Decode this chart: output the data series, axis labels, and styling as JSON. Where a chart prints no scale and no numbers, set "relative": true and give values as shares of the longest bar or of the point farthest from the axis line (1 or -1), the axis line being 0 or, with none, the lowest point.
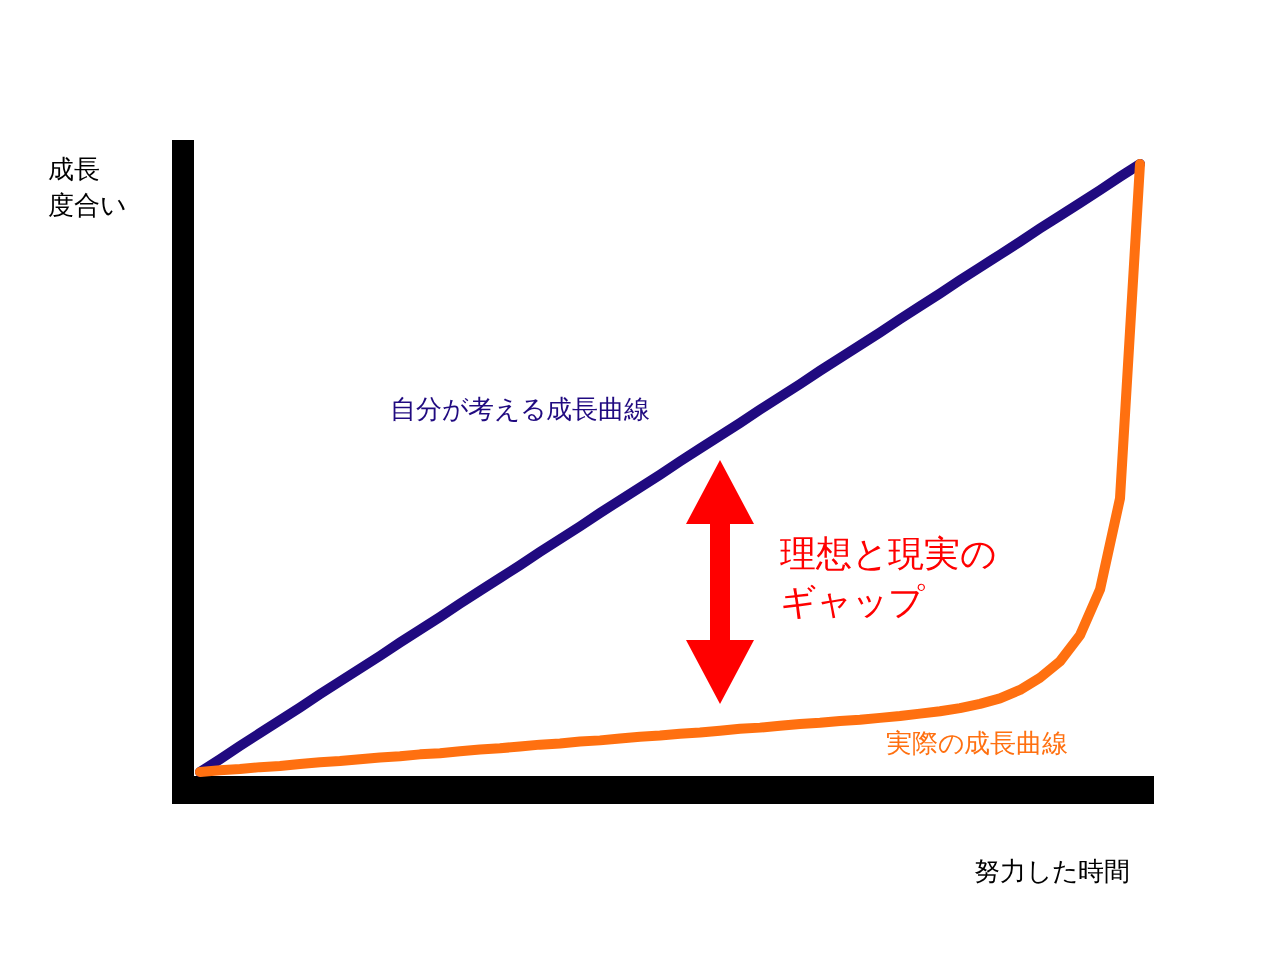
{
  "chart_data": {
    "type": "line",
    "relative": true,
    "xlabel": "努力した時間",
    "ylabel": "成長度合い",
    "annotations": [
      "理想と現実のギャップ"
    ],
    "categories": [
      null,
      null,
      null,
      null,
      null,
      null,
      null,
      null,
      null,
      null,
      null,
      null,
      null,
      null,
      null,
      null,
      null,
      null,
      null,
      null,
      null,
      null,
      null,
      null,
      null,
      null,
      null,
      null,
      null,
      null,
      null,
      null,
      null,
      null,
      null,
      null,
      null,
      null,
      null,
      null,
      null,
      null,
      null,
      null,
      null,
      null,
      null,
      null
    ],
    "series": [
      {
        "name": "自分が考える成長曲線",
        "color": "#200a80",
        "values": [
          0,
          0.021,
          0.043,
          0.064,
          0.085,
          0.106,
          0.128,
          0.149,
          0.17,
          0.191,
          0.213,
          0.234,
          0.255,
          0.277,
          0.298,
          0.319,
          0.34,
          0.362,
          0.383,
          0.404,
          0.426,
          0.447,
          0.468,
          0.489,
          0.511,
          0.532,
          0.553,
          0.574,
          0.596,
          0.617,
          0.638,
          0.66,
          0.681,
          0.702,
          0.723,
          0.745,
          0.766,
          0.787,
          0.809,
          0.83,
          0.851,
          0.872,
          0.894,
          0.915,
          0.936,
          0.957,
          0.979,
          1
        ]
      },
      {
        "name": "実際の成長曲線",
        "color": "#ff7010",
        "values": [
          0,
          0.003,
          0.005,
          0.008,
          0.01,
          0.013,
          0.016,
          0.018,
          0.021,
          0.024,
          0.026,
          0.029,
          0.031,
          0.034,
          0.037,
          0.039,
          0.042,
          0.045,
          0.047,
          0.05,
          0.052,
          0.055,
          0.058,
          0.06,
          0.063,
          0.065,
          0.068,
          0.071,
          0.073,
          0.076,
          0.079,
          0.081,
          0.084,
          0.086,
          0.089,
          0.092,
          0.096,
          0.1,
          0.105,
          0.112,
          0.121,
          0.135,
          0.155,
          0.182,
          0.225,
          0.3,
          0.45,
          1
        ]
      }
    ]
  }
}
